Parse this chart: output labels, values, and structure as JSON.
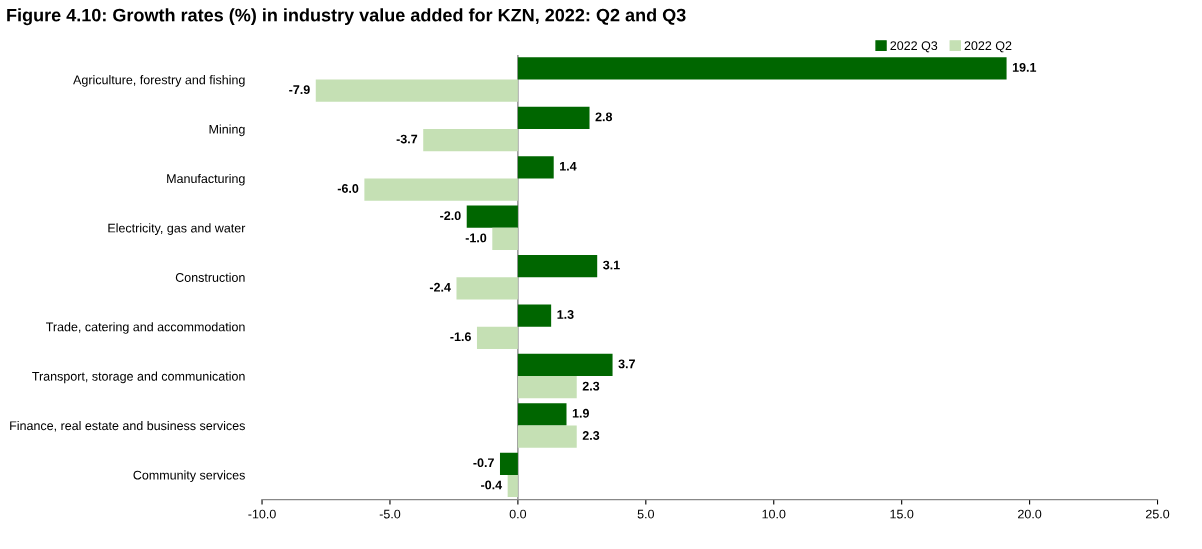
{
  "chart_data": {
    "type": "bar",
    "orientation": "horizontal",
    "title": "Figure 4.10: Growth rates (%) in industry value added for KZN, 2022: Q2 and Q3",
    "categories": [
      "Agriculture, forestry and fishing",
      "Mining",
      "Manufacturing",
      "Electricity, gas and water",
      "Construction",
      "Trade, catering and accommodation",
      "Transport, storage and communication",
      "Finance, real estate and business services",
      "Community services"
    ],
    "series": [
      {
        "name": "2022 Q3",
        "color": "#006600",
        "values": [
          19.1,
          2.8,
          1.4,
          -2.0,
          3.1,
          1.3,
          3.7,
          1.9,
          -0.7
        ],
        "value_labels": [
          "19.1",
          "2.8",
          "1.4",
          "-2.0",
          "3.1",
          "1.3",
          "3.7",
          "1.9",
          "-0.7"
        ]
      },
      {
        "name": "2022 Q2",
        "color": "#c5e0b4",
        "values": [
          -7.9,
          -3.7,
          -6.0,
          -1.0,
          -2.4,
          -1.6,
          2.3,
          2.3,
          -0.4
        ],
        "value_labels": [
          "-7.9",
          "-3.7",
          "-6.0",
          "-1.0",
          "-2.4",
          "-1.6",
          "2.3",
          "2.3",
          "-0.4"
        ]
      }
    ],
    "xlim": [
      -10,
      25
    ],
    "xticks": [
      {
        "value": -10,
        "label": "-10.0"
      },
      {
        "value": -5,
        "label": "-5.0"
      },
      {
        "value": 0,
        "label": "0.0"
      },
      {
        "value": 5,
        "label": "5.0"
      },
      {
        "value": 10,
        "label": "10.0"
      },
      {
        "value": 15,
        "label": "15.0"
      },
      {
        "value": 20,
        "label": "20.0"
      },
      {
        "value": 25,
        "label": "25.0"
      }
    ],
    "ref_lines": [
      {
        "axis": "x",
        "value": 0,
        "color": "#888888"
      }
    ],
    "legend": "top right",
    "grid": false
  }
}
